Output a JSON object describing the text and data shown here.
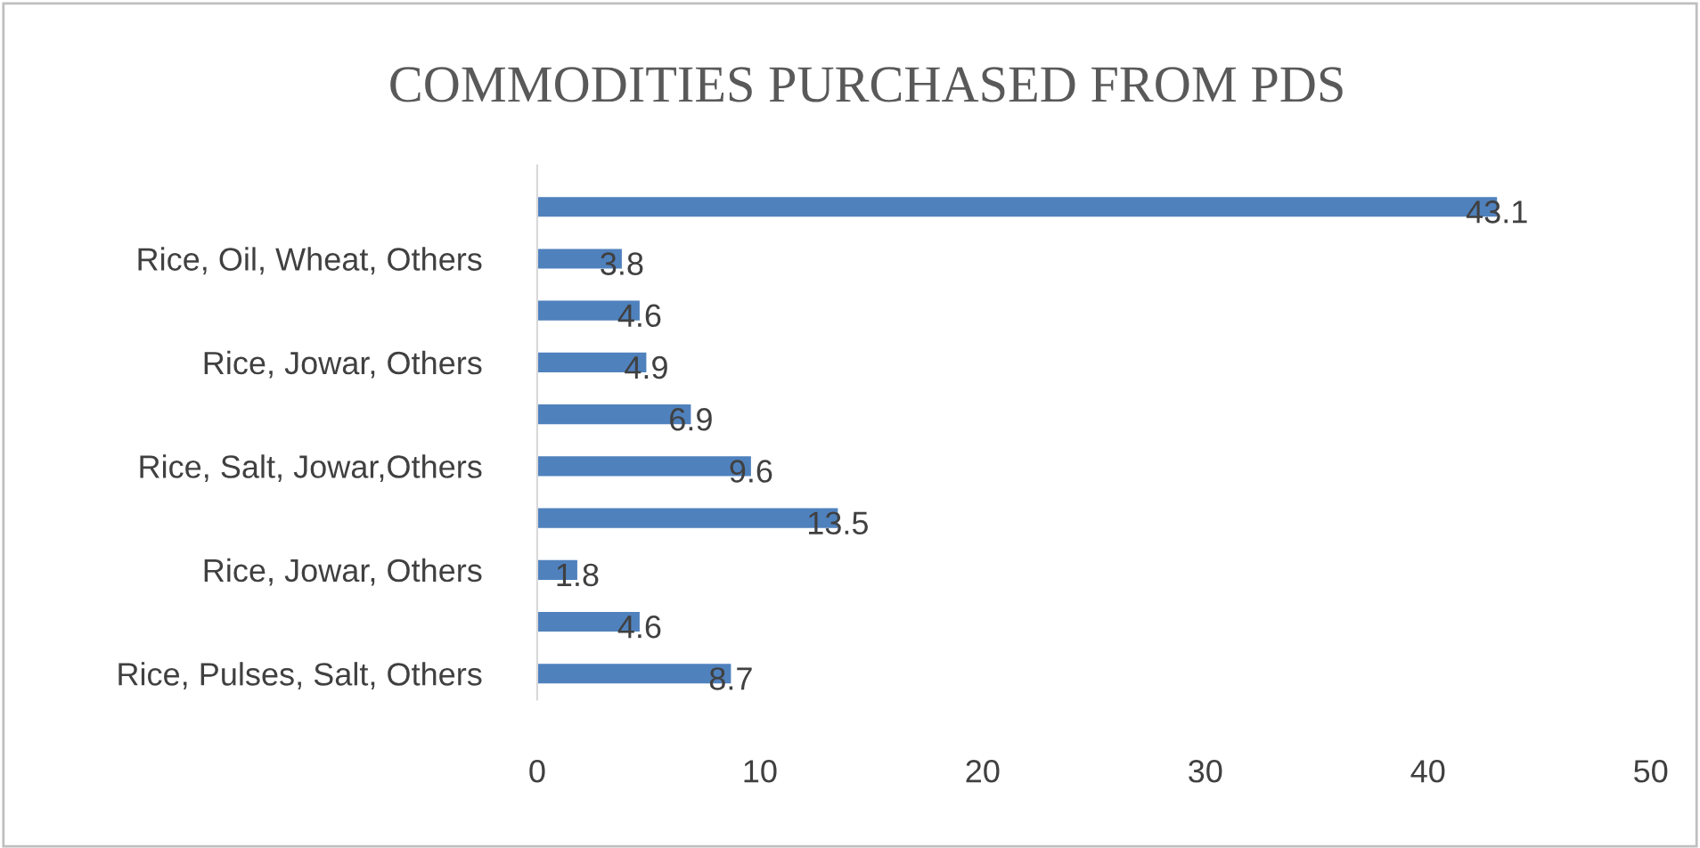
{
  "chart_data": {
    "type": "bar",
    "orientation": "horizontal",
    "title": "COMMODITIES PURCHASED FROM PDS",
    "categories": [
      null,
      "Rice, Oil, Wheat, Others",
      null,
      "Rice, Jowar, Others",
      null,
      "Rice, Salt, Jowar,Others",
      null,
      "Rice, Jowar, Others",
      null,
      "Rice, Pulses, Salt, Others"
    ],
    "values": [
      43.1,
      3.8,
      4.6,
      4.9,
      6.9,
      9.6,
      13.5,
      1.8,
      4.6,
      8.7
    ],
    "color": "#4f81bd",
    "xlim": [
      0,
      50
    ],
    "xticks": [
      0,
      10,
      20,
      30,
      40,
      50
    ],
    "data_labels": true,
    "grid": false
  }
}
